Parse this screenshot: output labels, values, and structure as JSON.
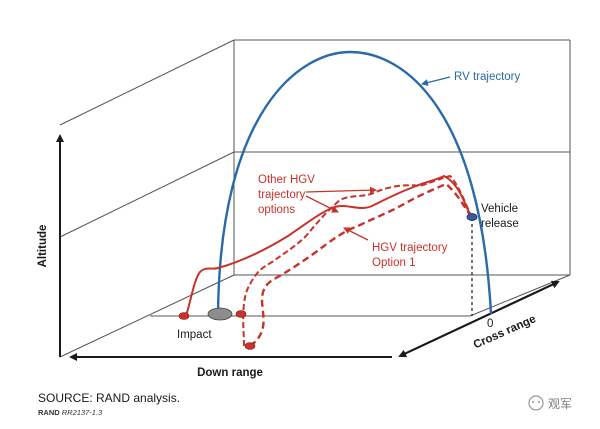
{
  "labels": {
    "rv_trajectory": "RV trajectory",
    "other_hgv_line1": "Other HGV",
    "other_hgv_line2": "trajectory",
    "other_hgv_line3": "options",
    "hgv_option_line1": "HGV trajectory",
    "hgv_option_line2": "Option 1",
    "vehicle_release_line1": "Vehicle",
    "vehicle_release_line2": "release",
    "impact": "Impact",
    "zero": "0",
    "altitude_axis": "Altitude",
    "down_range_axis": "Down range",
    "cross_range_axis": "Cross range"
  },
  "source_note": "SOURCE: RAND analysis.",
  "figure_id_prefix": "RAND",
  "figure_id_number": "RR2137-1.3",
  "watermark": "观军",
  "colors": {
    "rv": "#2a6aa8",
    "hgv": "#c8322a",
    "axis": "#1a1a1a",
    "frame": "#555555",
    "impact_marker": "#8c8c8c",
    "release_marker": "#3c5a9a"
  }
}
